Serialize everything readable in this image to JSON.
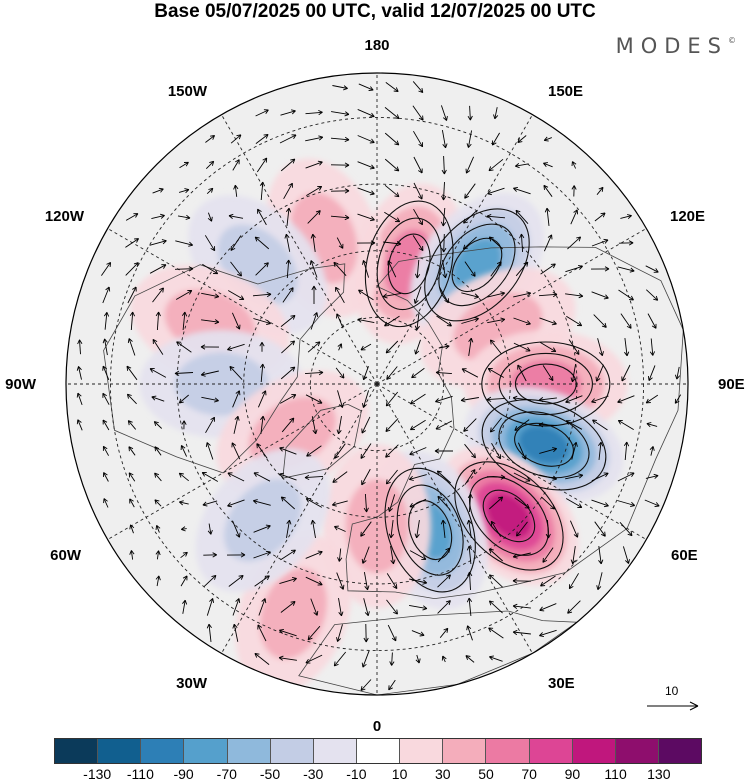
{
  "title": "Base 05/07/2025 00 UTC, valid 12/07/2025 00 UTC",
  "brand": "MODES",
  "brand_mark": "©",
  "longitude_labels": {
    "top": "180",
    "bottom": "0",
    "left": "90W",
    "right": "90E",
    "upper_left_1": "150W",
    "upper_left_2": "120W",
    "upper_right_1": "150E",
    "upper_right_2": "120E",
    "lower_left_1": "60W",
    "lower_left_2": "30W",
    "lower_right_1": "60E",
    "lower_right_2": "30E"
  },
  "reference_vector": {
    "label": "10"
  },
  "colorbar": {
    "colors": [
      "#0b3a5a",
      "#115f8f",
      "#2d7fb6",
      "#55a0cc",
      "#8fb9dc",
      "#c3cde5",
      "#e4e2ef",
      "#ffffff",
      "#f9d9de",
      "#f4adbb",
      "#ec7aa3",
      "#dd4595",
      "#c0177d",
      "#8e0e6d",
      "#5c0a62"
    ],
    "tick_labels": [
      "-130",
      "-110",
      "-90",
      "-70",
      "-50",
      "-30",
      "-10",
      "10",
      "30",
      "50",
      "70",
      "90",
      "110",
      "130"
    ]
  },
  "anomalies": [
    {
      "lon": 165,
      "lat": 62,
      "value": 40
    },
    {
      "lon": -160,
      "lat": 55,
      "value": 20
    },
    {
      "lon": 140,
      "lat": 55,
      "value": -70
    },
    {
      "lon": -135,
      "lat": 52,
      "value": -30
    },
    {
      "lon": 115,
      "lat": 60,
      "value": 30
    },
    {
      "lon": -110,
      "lat": 50,
      "value": 30
    },
    {
      "lon": 90,
      "lat": 52,
      "value": 50
    },
    {
      "lon": -90,
      "lat": 55,
      "value": -20
    },
    {
      "lon": 70,
      "lat": 50,
      "value": -90
    },
    {
      "lon": 45,
      "lat": 48,
      "value": 90
    },
    {
      "lon": -60,
      "lat": 68,
      "value": 30
    },
    {
      "lon": 20,
      "lat": 55,
      "value": -70
    },
    {
      "lon": 0,
      "lat": 58,
      "value": 20
    },
    {
      "lon": -20,
      "lat": 35,
      "value": 20
    },
    {
      "lon": -40,
      "lat": 50,
      "value": -20
    }
  ]
}
